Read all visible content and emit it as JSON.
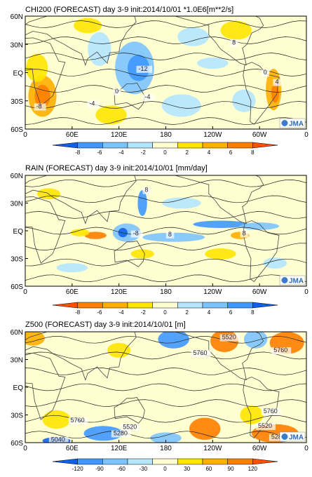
{
  "chart_data": [
    {
      "type": "heatmap",
      "title": "CHI200 (FORECAST)",
      "period": "day 3-9",
      "init": "init:2014/10/01",
      "units": "*1.0E6[m**2/s]",
      "lat_labels": [
        "60N",
        "30N",
        "EQ",
        "30S",
        "60S"
      ],
      "lon_labels": [
        "0",
        "60E",
        "120E",
        "180",
        "120W",
        "60W",
        "0"
      ],
      "legend_labels": [
        "-8",
        "-6",
        "-4",
        "-2",
        "0",
        "2",
        "4",
        "6",
        "8"
      ],
      "legend_colors": [
        "#1060e8",
        "#3f98ff",
        "#7cc4ff",
        "#b4e6ff",
        "#ffffd2",
        "#ffe600",
        "#ffaf00",
        "#ff7e00",
        "#ff5000"
      ],
      "contour_labels": [
        {
          "text": "8",
          "lon": 265,
          "lat": 30
        },
        {
          "text": "-12",
          "lon": 145,
          "lat": 2
        },
        {
          "text": "-4",
          "lon": 153,
          "lat": -28
        },
        {
          "text": "0",
          "lon": 115,
          "lat": -22
        },
        {
          "text": "-8",
          "lon": 14,
          "lat": -38
        },
        {
          "text": "-4",
          "lon": 82,
          "lat": -35
        },
        {
          "text": "0",
          "lon": 305,
          "lat": -2
        },
        {
          "text": "4",
          "lon": 320,
          "lat": -12
        }
      ],
      "logo": "JMA"
    },
    {
      "type": "heatmap",
      "title": "RAIN (FORECAST)",
      "period": "day 3-9",
      "init": "init:2014/10/01",
      "units": "[mm/day]",
      "lat_labels": [
        "60N",
        "30N",
        "EQ",
        "30S",
        "60S"
      ],
      "lon_labels": [
        "0",
        "60E",
        "120E",
        "180",
        "120W",
        "60W",
        "0"
      ],
      "legend_labels": [
        "-8",
        "-6",
        "-4",
        "-2",
        "0",
        "2",
        "4",
        "6",
        "8"
      ],
      "legend_colors": [
        "#ff5000",
        "#ff7e00",
        "#ffaf00",
        "#ffe600",
        "#ffffd2",
        "#b4e6ff",
        "#7cc4ff",
        "#3f98ff",
        "#1060e8"
      ],
      "contour_labels": [
        {
          "text": "8",
          "lon": 153,
          "lat": 42
        },
        {
          "text": "-8",
          "lon": 138,
          "lat": -5
        },
        {
          "text": "8",
          "lon": 183,
          "lat": -6
        },
        {
          "text": "8",
          "lon": 278,
          "lat": -5
        }
      ],
      "logo": "JMA"
    },
    {
      "type": "heatmap",
      "title": "Z500 (FORECAST)",
      "period": "day 3-9",
      "init": "init:2014/10/01",
      "units": "[m]",
      "lat_labels": [
        "60N",
        "30N",
        "EQ",
        "30S",
        "60S"
      ],
      "lon_labels": [
        "0",
        "60E",
        "120E",
        "180",
        "120W",
        "60W",
        "0"
      ],
      "legend_labels": [
        "-120",
        "-90",
        "-60",
        "-30",
        "0",
        "30",
        "60",
        "90",
        "120"
      ],
      "legend_colors": [
        "#1060e8",
        "#3f98ff",
        "#7cc4ff",
        "#b4e6ff",
        "#ffffd2",
        "#ffe600",
        "#ffaf00",
        "#ff7e00",
        "#ff5000"
      ],
      "contour_labels": [
        {
          "text": "5520",
          "lon": 252,
          "lat": 52
        },
        {
          "text": "5760",
          "lon": 215,
          "lat": 35
        },
        {
          "text": "5760",
          "lon": 318,
          "lat": 38
        },
        {
          "text": "5760",
          "lon": 58,
          "lat": -38
        },
        {
          "text": "5520",
          "lon": 125,
          "lat": -45
        },
        {
          "text": "5280",
          "lon": 113,
          "lat": -52
        },
        {
          "text": "5040",
          "lon": 33,
          "lat": -59
        },
        {
          "text": "5760",
          "lon": 305,
          "lat": -28
        },
        {
          "text": "5520",
          "lon": 298,
          "lat": -44
        },
        {
          "text": "5280",
          "lon": 315,
          "lat": -56
        }
      ],
      "logo": "JMA"
    }
  ]
}
